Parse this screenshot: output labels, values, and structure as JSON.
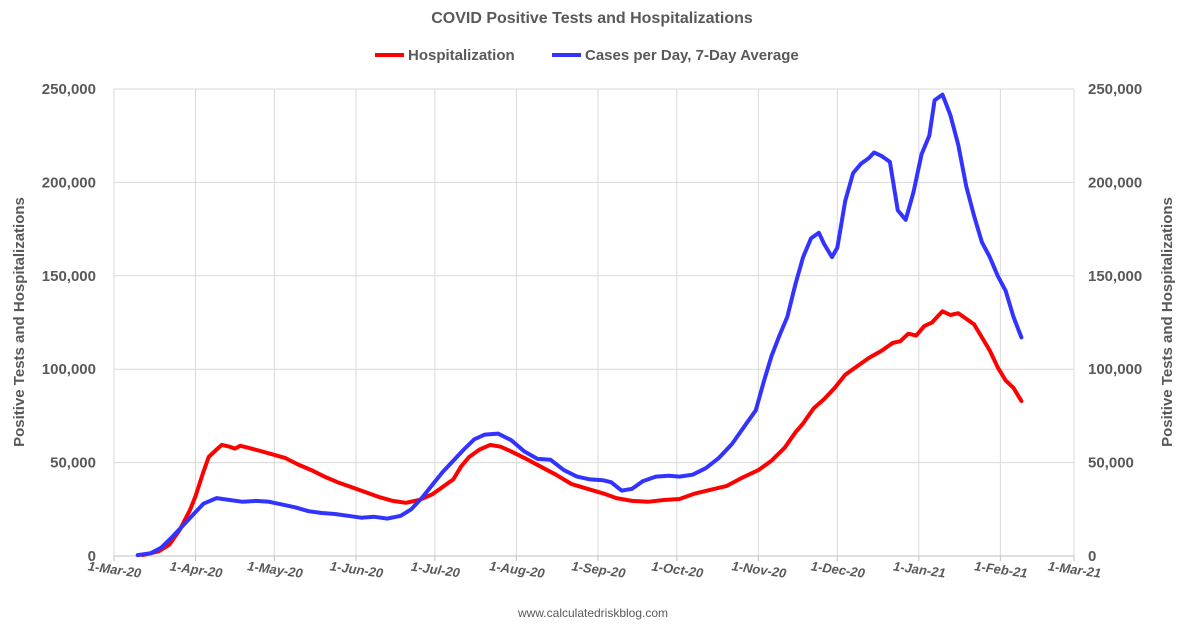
{
  "chart_data": {
    "type": "line",
    "title": "COVID Positive Tests and Hospitalizations",
    "ylabel_left": "Positive Tests and Hospitalizations",
    "ylabel_right": "Positive Tests and Hospitalizations",
    "source": "www.calculatedriskblog.com",
    "ylim": [
      0,
      250000
    ],
    "yticks": [
      0,
      50000,
      100000,
      150000,
      200000,
      250000
    ],
    "ytick_labels": [
      "0",
      "50,000",
      "100,000",
      "150,000",
      "200,000",
      "250,000"
    ],
    "xlim": [
      "2020-03-01",
      "2021-03-01"
    ],
    "xticks": [
      "2020-03-01",
      "2020-04-01",
      "2020-05-01",
      "2020-06-01",
      "2020-07-01",
      "2020-08-01",
      "2020-09-01",
      "2020-10-01",
      "2020-11-01",
      "2020-12-01",
      "2021-01-01",
      "2021-02-01",
      "2021-03-01"
    ],
    "xtick_labels": [
      "1-Mar-20",
      "1-Apr-20",
      "1-May-20",
      "1-Jun-20",
      "1-Jul-20",
      "1-Aug-20",
      "1-Sep-20",
      "1-Oct-20",
      "1-Nov-20",
      "1-Dec-20",
      "1-Jan-21",
      "1-Feb-21",
      "1-Mar-21"
    ],
    "grid": "vertical and horizontal",
    "legend": "top-center",
    "series": [
      {
        "name": "Hospitalization",
        "color": "#ff0000",
        "points": [
          [
            "2020-03-12",
            500
          ],
          [
            "2020-03-18",
            2500
          ],
          [
            "2020-03-22",
            6000
          ],
          [
            "2020-03-26",
            14000
          ],
          [
            "2020-03-30",
            25000
          ],
          [
            "2020-04-01",
            32000
          ],
          [
            "2020-04-04",
            45000
          ],
          [
            "2020-04-06",
            53000
          ],
          [
            "2020-04-09",
            57000
          ],
          [
            "2020-04-11",
            59500
          ],
          [
            "2020-04-14",
            58500
          ],
          [
            "2020-04-16",
            57500
          ],
          [
            "2020-04-18",
            59000
          ],
          [
            "2020-04-21",
            58000
          ],
          [
            "2020-04-25",
            56500
          ],
          [
            "2020-04-30",
            54500
          ],
          [
            "2020-05-05",
            52500
          ],
          [
            "2020-05-10",
            49000
          ],
          [
            "2020-05-15",
            46000
          ],
          [
            "2020-05-20",
            42500
          ],
          [
            "2020-05-25",
            39500
          ],
          [
            "2020-05-30",
            37000
          ],
          [
            "2020-06-05",
            34000
          ],
          [
            "2020-06-10",
            31500
          ],
          [
            "2020-06-15",
            29500
          ],
          [
            "2020-06-20",
            28500
          ],
          [
            "2020-06-25",
            30000
          ],
          [
            "2020-06-30",
            33000
          ],
          [
            "2020-07-05",
            38000
          ],
          [
            "2020-07-08",
            41000
          ],
          [
            "2020-07-11",
            48000
          ],
          [
            "2020-07-14",
            53000
          ],
          [
            "2020-07-18",
            57000
          ],
          [
            "2020-07-22",
            59500
          ],
          [
            "2020-07-26",
            58500
          ],
          [
            "2020-07-30",
            56000
          ],
          [
            "2020-08-04",
            52500
          ],
          [
            "2020-08-10",
            48000
          ],
          [
            "2020-08-16",
            43500
          ],
          [
            "2020-08-22",
            38500
          ],
          [
            "2020-08-28",
            36000
          ],
          [
            "2020-09-03",
            33500
          ],
          [
            "2020-09-08",
            31000
          ],
          [
            "2020-09-14",
            29500
          ],
          [
            "2020-09-20",
            29000
          ],
          [
            "2020-09-26",
            30000
          ],
          [
            "2020-10-02",
            30500
          ],
          [
            "2020-10-08",
            33500
          ],
          [
            "2020-10-14",
            35500
          ],
          [
            "2020-10-20",
            37500
          ],
          [
            "2020-10-26",
            42000
          ],
          [
            "2020-11-01",
            46000
          ],
          [
            "2020-11-06",
            51000
          ],
          [
            "2020-11-11",
            58000
          ],
          [
            "2020-11-15",
            66000
          ],
          [
            "2020-11-18",
            71000
          ],
          [
            "2020-11-22",
            79000
          ],
          [
            "2020-11-26",
            84000
          ],
          [
            "2020-11-30",
            90000
          ],
          [
            "2020-12-04",
            97000
          ],
          [
            "2020-12-08",
            101000
          ],
          [
            "2020-12-13",
            106000
          ],
          [
            "2020-12-18",
            110000
          ],
          [
            "2020-12-22",
            114000
          ],
          [
            "2020-12-25",
            115000
          ],
          [
            "2020-12-28",
            119000
          ],
          [
            "2020-12-31",
            118000
          ],
          [
            "2021-01-03",
            123000
          ],
          [
            "2021-01-06",
            125000
          ],
          [
            "2021-01-08",
            128000
          ],
          [
            "2021-01-10",
            131000
          ],
          [
            "2021-01-13",
            129000
          ],
          [
            "2021-01-16",
            130000
          ],
          [
            "2021-01-19",
            127000
          ],
          [
            "2021-01-22",
            124000
          ],
          [
            "2021-01-25",
            117000
          ],
          [
            "2021-01-28",
            110000
          ],
          [
            "2021-01-31",
            101000
          ],
          [
            "2021-02-03",
            94000
          ],
          [
            "2021-02-06",
            90000
          ],
          [
            "2021-02-09",
            83000
          ]
        ]
      },
      {
        "name": "Cases per Day, 7-Day Average",
        "color": "#3333ff",
        "points": [
          [
            "2020-03-10",
            500
          ],
          [
            "2020-03-15",
            1500
          ],
          [
            "2020-03-19",
            4500
          ],
          [
            "2020-03-23",
            10000
          ],
          [
            "2020-03-27",
            16000
          ],
          [
            "2020-03-31",
            22000
          ],
          [
            "2020-04-04",
            28000
          ],
          [
            "2020-04-09",
            31000
          ],
          [
            "2020-04-14",
            30000
          ],
          [
            "2020-04-19",
            29000
          ],
          [
            "2020-04-24",
            29500
          ],
          [
            "2020-04-29",
            29000
          ],
          [
            "2020-05-04",
            27500
          ],
          [
            "2020-05-09",
            26000
          ],
          [
            "2020-05-14",
            24000
          ],
          [
            "2020-05-19",
            23000
          ],
          [
            "2020-05-24",
            22500
          ],
          [
            "2020-05-29",
            21500
          ],
          [
            "2020-06-03",
            20500
          ],
          [
            "2020-06-08",
            21000
          ],
          [
            "2020-06-13",
            20000
          ],
          [
            "2020-06-18",
            21500
          ],
          [
            "2020-06-22",
            25000
          ],
          [
            "2020-06-26",
            31000
          ],
          [
            "2020-06-30",
            38000
          ],
          [
            "2020-07-04",
            45000
          ],
          [
            "2020-07-08",
            51000
          ],
          [
            "2020-07-12",
            57000
          ],
          [
            "2020-07-16",
            62500
          ],
          [
            "2020-07-20",
            65000
          ],
          [
            "2020-07-25",
            65500
          ],
          [
            "2020-07-30",
            62000
          ],
          [
            "2020-08-04",
            56000
          ],
          [
            "2020-08-09",
            52000
          ],
          [
            "2020-08-14",
            51500
          ],
          [
            "2020-08-19",
            46000
          ],
          [
            "2020-08-24",
            42500
          ],
          [
            "2020-08-29",
            41000
          ],
          [
            "2020-09-03",
            40500
          ],
          [
            "2020-09-06",
            39500
          ],
          [
            "2020-09-10",
            35000
          ],
          [
            "2020-09-14",
            36000
          ],
          [
            "2020-09-18",
            40000
          ],
          [
            "2020-09-23",
            42500
          ],
          [
            "2020-09-28",
            43000
          ],
          [
            "2020-10-02",
            42500
          ],
          [
            "2020-10-07",
            43500
          ],
          [
            "2020-10-12",
            47000
          ],
          [
            "2020-10-17",
            52500
          ],
          [
            "2020-10-22",
            60000
          ],
          [
            "2020-10-27",
            70000
          ],
          [
            "2020-10-31",
            78000
          ],
          [
            "2020-11-03",
            93000
          ],
          [
            "2020-11-06",
            107000
          ],
          [
            "2020-11-09",
            118000
          ],
          [
            "2020-11-12",
            128000
          ],
          [
            "2020-11-15",
            145000
          ],
          [
            "2020-11-18",
            160000
          ],
          [
            "2020-11-21",
            170000
          ],
          [
            "2020-11-24",
            173000
          ],
          [
            "2020-11-26",
            167000
          ],
          [
            "2020-11-29",
            160000
          ],
          [
            "2020-12-01",
            165000
          ],
          [
            "2020-12-04",
            190000
          ],
          [
            "2020-12-07",
            205000
          ],
          [
            "2020-12-10",
            210000
          ],
          [
            "2020-12-13",
            213000
          ],
          [
            "2020-12-15",
            216000
          ],
          [
            "2020-12-18",
            214000
          ],
          [
            "2020-12-21",
            211000
          ],
          [
            "2020-12-24",
            185000
          ],
          [
            "2020-12-27",
            180000
          ],
          [
            "2020-12-30",
            195000
          ],
          [
            "2021-01-02",
            215000
          ],
          [
            "2021-01-05",
            225000
          ],
          [
            "2021-01-07",
            244000
          ],
          [
            "2021-01-10",
            247000
          ],
          [
            "2021-01-13",
            236000
          ],
          [
            "2021-01-16",
            220000
          ],
          [
            "2021-01-19",
            198000
          ],
          [
            "2021-01-22",
            182000
          ],
          [
            "2021-01-25",
            168000
          ],
          [
            "2021-01-28",
            160000
          ],
          [
            "2021-01-31",
            150000
          ],
          [
            "2021-02-03",
            142000
          ],
          [
            "2021-02-06",
            128000
          ],
          [
            "2021-02-09",
            117000
          ]
        ]
      }
    ]
  }
}
